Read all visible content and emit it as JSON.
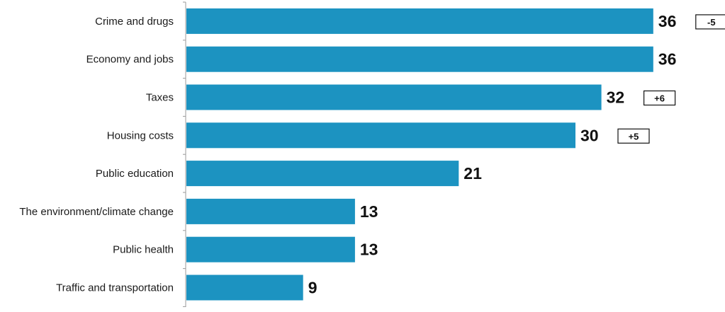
{
  "chart_data": {
    "type": "bar",
    "orientation": "horizontal",
    "categories": [
      "Crime and drugs",
      "Economy and jobs",
      "Taxes",
      "Housing costs",
      "Public education",
      "The environment/climate change",
      "Public health",
      "Traffic and transportation"
    ],
    "values": [
      36,
      36,
      32,
      30,
      21,
      13,
      13,
      9
    ],
    "changes": [
      "-5",
      "",
      "+6",
      "+5",
      "",
      "",
      "",
      ""
    ],
    "xlim": [
      0,
      36
    ],
    "title": "",
    "xlabel": "",
    "ylabel": "",
    "grid": false,
    "colors": {
      "bar": "#1c93c1",
      "text": "#111111",
      "axis": "#9a9a9a"
    }
  }
}
